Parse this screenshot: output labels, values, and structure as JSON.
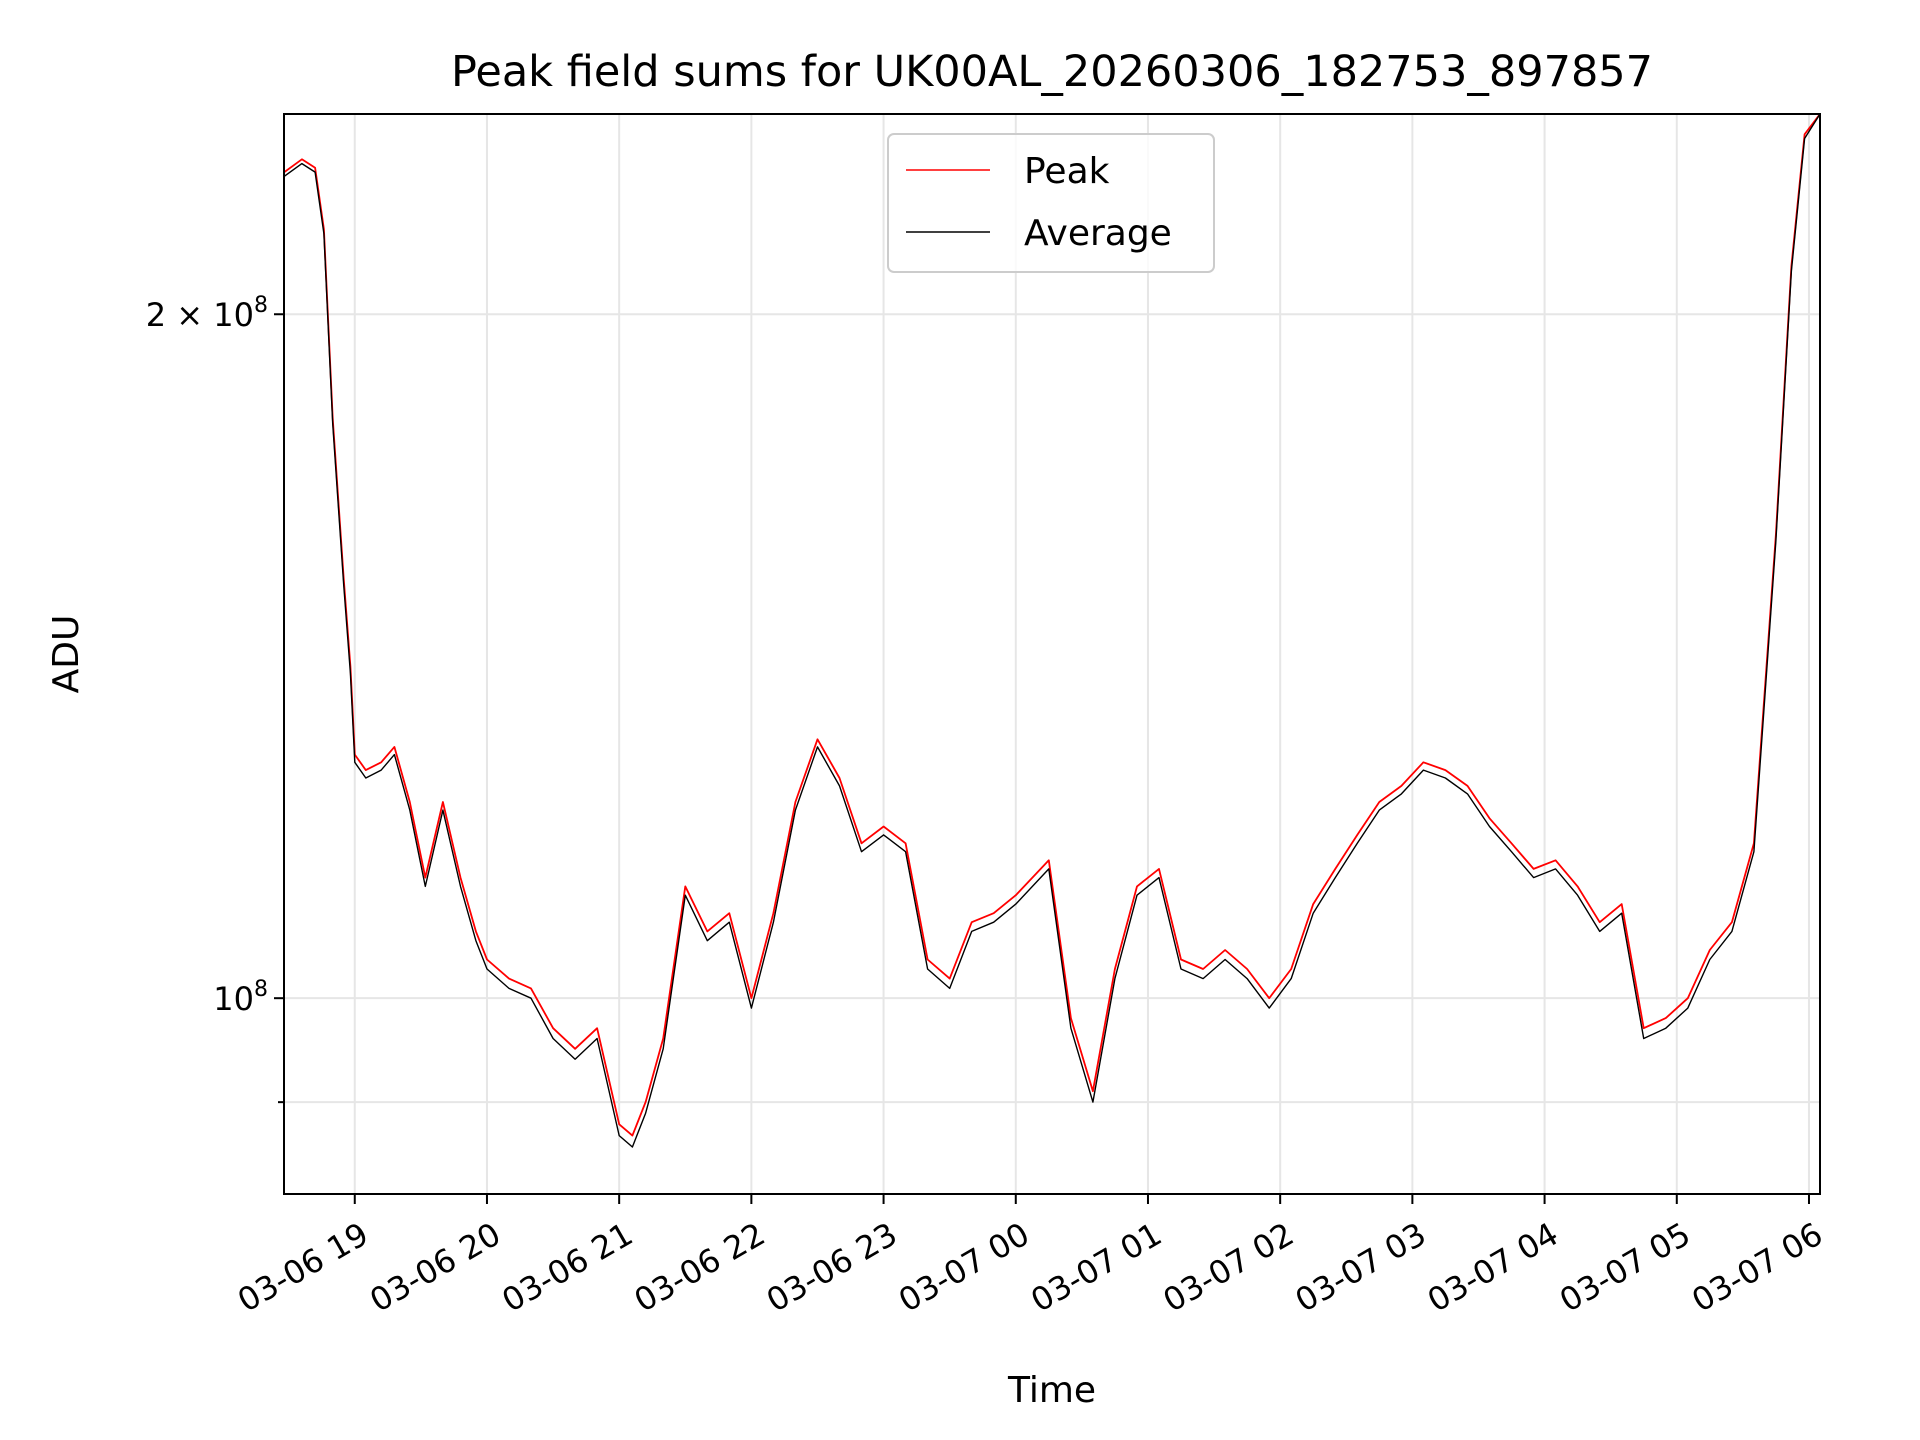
{
  "chart_data": {
    "type": "line",
    "title": "Peak field sums for UK00AL_20260306_182753_897857",
    "xlabel": "Time",
    "ylabel": "ADU",
    "y_scale": "log",
    "ylim": [
      82000000,
      245000000
    ],
    "xlim": [
      "2026-03-06 18:27:53",
      "2026-03-07 06:05:00"
    ],
    "grid": true,
    "legend_position": "upper-center",
    "x_ticks": [
      {
        "value": "2026-03-06 19:00",
        "label": "03-06 19"
      },
      {
        "value": "2026-03-06 20:00",
        "label": "03-06 20"
      },
      {
        "value": "2026-03-06 21:00",
        "label": "03-06 21"
      },
      {
        "value": "2026-03-06 22:00",
        "label": "03-06 22"
      },
      {
        "value": "2026-03-06 23:00",
        "label": "03-06 23"
      },
      {
        "value": "2026-03-07 00:00",
        "label": "03-07 00"
      },
      {
        "value": "2026-03-07 01:00",
        "label": "03-07 01"
      },
      {
        "value": "2026-03-07 02:00",
        "label": "03-07 02"
      },
      {
        "value": "2026-03-07 03:00",
        "label": "03-07 03"
      },
      {
        "value": "2026-03-07 04:00",
        "label": "03-07 04"
      },
      {
        "value": "2026-03-07 05:00",
        "label": "03-07 05"
      },
      {
        "value": "2026-03-07 06:00",
        "label": "03-07 06"
      }
    ],
    "y_major_ticks": [
      {
        "value": 100000000,
        "base": "10",
        "exp": "8",
        "mantissa": ""
      },
      {
        "value": 200000000,
        "base": "10",
        "exp": "8",
        "mantissa": "2 × "
      }
    ],
    "y_minor_ticks": [
      90000000
    ],
    "series": [
      {
        "name": "Peak",
        "color": "#ff0000",
        "x": [
          "2026-03-06 18:28",
          "2026-03-06 18:36",
          "2026-03-06 18:42",
          "2026-03-06 18:46",
          "2026-03-06 18:50",
          "2026-03-06 18:55",
          "2026-03-06 18:58",
          "2026-03-06 19:00",
          "2026-03-06 19:05",
          "2026-03-06 19:12",
          "2026-03-06 19:18",
          "2026-03-06 19:25",
          "2026-03-06 19:32",
          "2026-03-06 19:40",
          "2026-03-06 19:48",
          "2026-03-06 19:55",
          "2026-03-06 20:00",
          "2026-03-06 20:10",
          "2026-03-06 20:20",
          "2026-03-06 20:30",
          "2026-03-06 20:40",
          "2026-03-06 20:50",
          "2026-03-06 21:00",
          "2026-03-06 21:06",
          "2026-03-06 21:12",
          "2026-03-06 21:20",
          "2026-03-06 21:30",
          "2026-03-06 21:40",
          "2026-03-06 21:50",
          "2026-03-06 22:00",
          "2026-03-06 22:10",
          "2026-03-06 22:20",
          "2026-03-06 22:30",
          "2026-03-06 22:40",
          "2026-03-06 22:50",
          "2026-03-06 23:00",
          "2026-03-06 23:10",
          "2026-03-06 23:20",
          "2026-03-06 23:30",
          "2026-03-06 23:40",
          "2026-03-06 23:50",
          "2026-03-07 00:00",
          "2026-03-07 00:15",
          "2026-03-07 00:25",
          "2026-03-07 00:35",
          "2026-03-07 00:45",
          "2026-03-07 00:55",
          "2026-03-07 01:05",
          "2026-03-07 01:15",
          "2026-03-07 01:25",
          "2026-03-07 01:35",
          "2026-03-07 01:45",
          "2026-03-07 01:55",
          "2026-03-07 02:05",
          "2026-03-07 02:15",
          "2026-03-07 02:25",
          "2026-03-07 02:35",
          "2026-03-07 02:45",
          "2026-03-07 02:55",
          "2026-03-07 03:05",
          "2026-03-07 03:15",
          "2026-03-07 03:25",
          "2026-03-07 03:35",
          "2026-03-07 03:45",
          "2026-03-07 03:55",
          "2026-03-07 04:05",
          "2026-03-07 04:15",
          "2026-03-07 04:25",
          "2026-03-07 04:35",
          "2026-03-07 04:45",
          "2026-03-07 04:55",
          "2026-03-07 05:05",
          "2026-03-07 05:15",
          "2026-03-07 05:25",
          "2026-03-07 05:35",
          "2026-03-07 05:45",
          "2026-03-07 05:52",
          "2026-03-07 05:58",
          "2026-03-07 06:05"
        ],
        "y": [
          231000000,
          234000000,
          232000000,
          218000000,
          180000000,
          153000000,
          140000000,
          128000000,
          126000000,
          127000000,
          129000000,
          122000000,
          113000000,
          122000000,
          113000000,
          107000000,
          104000000,
          102000000,
          101000000,
          97000000,
          95000000,
          97000000,
          88000000,
          87000000,
          90000000,
          96000000,
          112000000,
          107000000,
          109000000,
          100000000,
          109000000,
          122000000,
          130000000,
          125000000,
          117000000,
          119000000,
          117000000,
          104000000,
          102000000,
          108000000,
          109000000,
          111000000,
          115000000,
          98000000,
          91000000,
          103000000,
          112000000,
          114000000,
          104000000,
          103000000,
          105000000,
          103000000,
          100000000,
          103000000,
          110000000,
          114000000,
          118000000,
          122000000,
          124000000,
          127000000,
          126000000,
          124000000,
          120000000,
          117000000,
          114000000,
          115000000,
          112000000,
          108000000,
          110000000,
          97000000,
          98000000,
          100000000,
          105000000,
          108000000,
          117000000,
          160000000,
          210000000,
          240000000,
          245000000
        ]
      },
      {
        "name": "Average",
        "color": "#000000",
        "x": [
          "2026-03-06 18:28",
          "2026-03-06 18:36",
          "2026-03-06 18:42",
          "2026-03-06 18:46",
          "2026-03-06 18:50",
          "2026-03-06 18:55",
          "2026-03-06 18:58",
          "2026-03-06 19:00",
          "2026-03-06 19:05",
          "2026-03-06 19:12",
          "2026-03-06 19:18",
          "2026-03-06 19:25",
          "2026-03-06 19:32",
          "2026-03-06 19:40",
          "2026-03-06 19:48",
          "2026-03-06 19:55",
          "2026-03-06 20:00",
          "2026-03-06 20:10",
          "2026-03-06 20:20",
          "2026-03-06 20:30",
          "2026-03-06 20:40",
          "2026-03-06 20:50",
          "2026-03-06 21:00",
          "2026-03-06 21:06",
          "2026-03-06 21:12",
          "2026-03-06 21:20",
          "2026-03-06 21:30",
          "2026-03-06 21:40",
          "2026-03-06 21:50",
          "2026-03-06 22:00",
          "2026-03-06 22:10",
          "2026-03-06 22:20",
          "2026-03-06 22:30",
          "2026-03-06 22:40",
          "2026-03-06 22:50",
          "2026-03-06 23:00",
          "2026-03-06 23:10",
          "2026-03-06 23:20",
          "2026-03-06 23:30",
          "2026-03-06 23:40",
          "2026-03-06 23:50",
          "2026-03-07 00:00",
          "2026-03-07 00:15",
          "2026-03-07 00:25",
          "2026-03-07 00:35",
          "2026-03-07 00:45",
          "2026-03-07 00:55",
          "2026-03-07 01:05",
          "2026-03-07 01:15",
          "2026-03-07 01:25",
          "2026-03-07 01:35",
          "2026-03-07 01:45",
          "2026-03-07 01:55",
          "2026-03-07 02:05",
          "2026-03-07 02:15",
          "2026-03-07 02:25",
          "2026-03-07 02:35",
          "2026-03-07 02:45",
          "2026-03-07 02:55",
          "2026-03-07 03:05",
          "2026-03-07 03:15",
          "2026-03-07 03:25",
          "2026-03-07 03:35",
          "2026-03-07 03:45",
          "2026-03-07 03:55",
          "2026-03-07 04:05",
          "2026-03-07 04:15",
          "2026-03-07 04:25",
          "2026-03-07 04:35",
          "2026-03-07 04:45",
          "2026-03-07 04:55",
          "2026-03-07 05:05",
          "2026-03-07 05:15",
          "2026-03-07 05:25",
          "2026-03-07 05:35",
          "2026-03-07 05:45",
          "2026-03-07 05:52",
          "2026-03-07 05:58",
          "2026-03-07 06:05"
        ],
        "y": [
          230000000,
          233000000,
          231000000,
          217000000,
          179000000,
          152000000,
          139000000,
          127000000,
          125000000,
          126000000,
          128000000,
          121000000,
          112000000,
          121000000,
          112000000,
          106000000,
          103000000,
          101000000,
          100000000,
          96000000,
          94000000,
          96000000,
          87000000,
          86000000,
          89000000,
          95000000,
          111000000,
          106000000,
          108000000,
          99000000,
          108000000,
          121000000,
          129000000,
          124000000,
          116000000,
          118000000,
          116000000,
          103000000,
          101000000,
          107000000,
          108000000,
          110000000,
          114000000,
          97000000,
          90000000,
          102000000,
          111000000,
          113000000,
          103000000,
          102000000,
          104000000,
          102000000,
          99000000,
          102000000,
          109000000,
          113000000,
          117000000,
          121000000,
          123000000,
          126000000,
          125000000,
          123000000,
          119000000,
          116000000,
          113000000,
          114000000,
          111000000,
          107000000,
          109000000,
          96000000,
          97000000,
          99000000,
          104000000,
          107000000,
          116000000,
          159000000,
          209000000,
          239000000,
          245000000
        ]
      }
    ]
  }
}
